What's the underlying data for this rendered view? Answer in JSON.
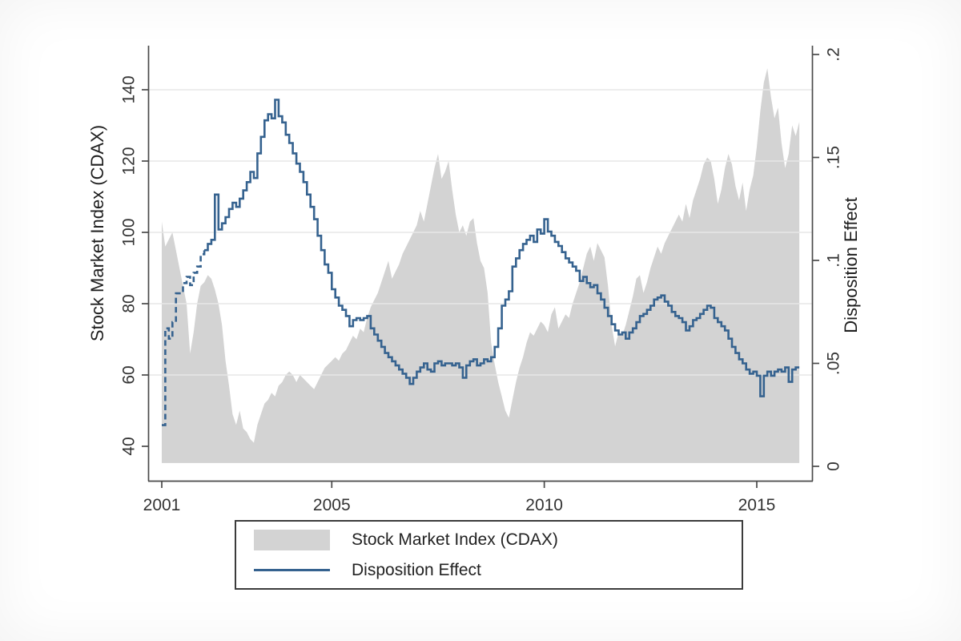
{
  "chart_data": {
    "type": "combo",
    "title": "",
    "x": {
      "start_year": 2001,
      "points_per_year": 12,
      "end_year_inclusive": 2016.0,
      "tick_years": [
        2001,
        2005,
        2010,
        2015
      ],
      "tick_labels": [
        "2001",
        "2005",
        "2010",
        "2015"
      ]
    },
    "left_axis": {
      "title": "Stock Market Index (CDAX)",
      "ticks": [
        40,
        60,
        80,
        100,
        120,
        140
      ],
      "tick_labels": [
        "40",
        "60",
        "80",
        "100",
        "120",
        "140"
      ],
      "grid_ticks": [
        60,
        80,
        100,
        120,
        140
      ],
      "range_shown": [
        31,
        152
      ],
      "area_baseline_value": 35.3
    },
    "right_axis": {
      "title": "Disposition Effect",
      "ticks": [
        0,
        0.05,
        0.1,
        0.15,
        0.2
      ],
      "tick_labels": [
        "0",
        ".05",
        ".1",
        ".15",
        ".2"
      ],
      "range_shown": [
        0,
        0.204
      ]
    },
    "series": [
      {
        "name": "Stock Market Index (CDAX)",
        "type": "area",
        "axis": "left",
        "color": "#d3d3d3",
        "frequency": "monthly",
        "values": [
          103,
          96,
          98,
          100,
          95,
          90,
          85,
          80,
          66,
          72,
          80,
          85,
          86,
          88,
          87,
          84,
          80,
          74,
          64,
          57,
          49,
          46,
          50,
          45,
          44,
          42,
          41,
          46,
          49,
          52,
          53,
          55,
          54,
          57,
          58,
          60,
          61,
          60,
          58,
          60,
          59,
          58,
          57,
          56,
          58,
          60,
          62,
          63,
          64,
          65,
          64,
          66,
          67,
          69,
          71,
          70,
          73,
          72,
          76,
          79,
          81,
          83,
          86,
          89,
          92,
          87,
          89,
          91,
          94,
          96,
          98,
          100,
          102,
          106,
          103,
          108,
          113,
          118,
          122,
          115,
          117,
          120,
          112,
          105,
          100,
          102,
          99,
          103,
          104,
          97,
          92,
          90,
          83,
          69,
          63,
          58,
          54,
          50,
          48,
          53,
          58,
          62,
          65,
          69,
          72,
          71,
          73,
          75,
          74,
          72,
          77,
          79,
          73,
          75,
          77,
          76,
          80,
          83,
          86,
          90,
          94,
          96,
          92,
          97,
          95,
          93,
          85,
          74,
          68,
          72,
          71,
          74,
          78,
          82,
          87,
          88,
          83,
          86,
          90,
          93,
          96,
          94,
          97,
          99,
          101,
          103,
          105,
          103,
          108,
          104,
          109,
          112,
          115,
          119,
          121,
          120,
          115,
          108,
          112,
          118,
          122,
          119,
          113,
          109,
          114,
          106,
          112,
          116,
          124,
          134,
          142,
          146,
          138,
          132,
          135,
          125,
          118,
          122,
          130,
          127,
          131
        ]
      },
      {
        "name": "Disposition Effect",
        "type": "step-line",
        "axis": "right",
        "color": "#35628f",
        "dashed_until_index": 12,
        "frequency": "monthly",
        "values": [
          0.02,
          0.067,
          0.062,
          0.07,
          0.084,
          0.084,
          0.089,
          0.092,
          0.088,
          0.094,
          0.097,
          0.103,
          0.105,
          0.108,
          0.11,
          0.132,
          0.115,
          0.118,
          0.121,
          0.125,
          0.128,
          0.126,
          0.13,
          0.134,
          0.138,
          0.143,
          0.14,
          0.152,
          0.16,
          0.168,
          0.171,
          0.169,
          0.178,
          0.17,
          0.167,
          0.161,
          0.157,
          0.152,
          0.147,
          0.143,
          0.138,
          0.132,
          0.126,
          0.12,
          0.112,
          0.105,
          0.098,
          0.094,
          0.086,
          0.082,
          0.078,
          0.076,
          0.073,
          0.068,
          0.071,
          0.072,
          0.071,
          0.072,
          0.073,
          0.067,
          0.064,
          0.061,
          0.058,
          0.055,
          0.053,
          0.051,
          0.049,
          0.047,
          0.045,
          0.043,
          0.04,
          0.043,
          0.046,
          0.048,
          0.05,
          0.047,
          0.046,
          0.05,
          0.051,
          0.049,
          0.05,
          0.05,
          0.049,
          0.05,
          0.048,
          0.043,
          0.049,
          0.051,
          0.052,
          0.049,
          0.05,
          0.052,
          0.051,
          0.053,
          0.058,
          0.067,
          0.078,
          0.081,
          0.085,
          0.097,
          0.101,
          0.105,
          0.108,
          0.11,
          0.112,
          0.109,
          0.115,
          0.113,
          0.12,
          0.114,
          0.112,
          0.109,
          0.107,
          0.104,
          0.101,
          0.099,
          0.097,
          0.095,
          0.09,
          0.092,
          0.089,
          0.087,
          0.088,
          0.084,
          0.081,
          0.077,
          0.073,
          0.069,
          0.066,
          0.064,
          0.065,
          0.062,
          0.065,
          0.067,
          0.07,
          0.073,
          0.074,
          0.076,
          0.078,
          0.081,
          0.082,
          0.083,
          0.08,
          0.078,
          0.075,
          0.073,
          0.072,
          0.07,
          0.066,
          0.068,
          0.071,
          0.072,
          0.074,
          0.076,
          0.078,
          0.077,
          0.072,
          0.07,
          0.068,
          0.066,
          0.062,
          0.058,
          0.055,
          0.052,
          0.05,
          0.047,
          0.045,
          0.046,
          0.044,
          0.034,
          0.044,
          0.046,
          0.044,
          0.046,
          0.047,
          0.046,
          0.048,
          0.041,
          0.047,
          0.048,
          0.048
        ]
      }
    ],
    "legend_position": "bottom"
  },
  "legend": {
    "items": [
      {
        "swatch": "area",
        "label": "Stock Market Index (CDAX)"
      },
      {
        "swatch": "line",
        "label": "Disposition Effect"
      }
    ]
  },
  "colors": {
    "area_fill": "#d3d3d3",
    "line": "#35628f",
    "grid": "#e7e7e7",
    "axis": "#4a4a4a"
  }
}
